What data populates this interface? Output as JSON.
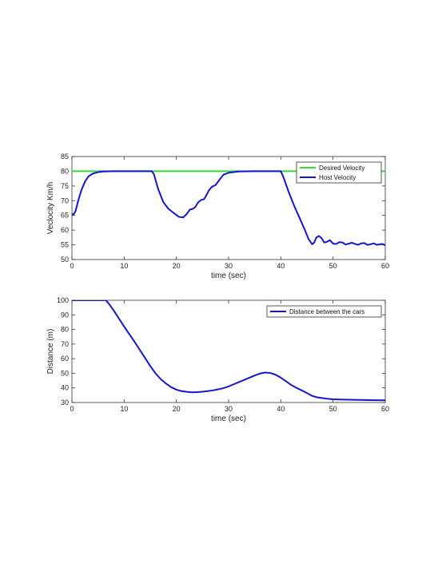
{
  "chart_data": [
    {
      "type": "line",
      "title": "",
      "xlabel": "time (sec)",
      "ylabel": "Veclocity Km/h",
      "xlim": [
        0,
        60
      ],
      "ylim": [
        50,
        85
      ],
      "xticks": [
        0,
        10,
        20,
        30,
        40,
        50,
        60
      ],
      "yticks": [
        50,
        55,
        60,
        65,
        70,
        75,
        80,
        85
      ],
      "grid": false,
      "legend": "top-right",
      "series": [
        {
          "name": "Desired Velocity",
          "color": "#33dd33",
          "x": [
            0,
            60
          ],
          "y": [
            80,
            80
          ]
        },
        {
          "name": "Host Velocity",
          "color": "#1515d0",
          "x": [
            0,
            0.3,
            0.7,
            1.2,
            1.8,
            2.5,
            3.2,
            4,
            5,
            6,
            8,
            10,
            12,
            14,
            15.3,
            15.7,
            16.5,
            17.5,
            18.5,
            19.5,
            20.5,
            21.3,
            22,
            22.6,
            23.1,
            23.6,
            24.2,
            24.8,
            25.3,
            25.8,
            26.3,
            26.8,
            27.5,
            28.2,
            29,
            30,
            32,
            35,
            38,
            40,
            40.5,
            41.5,
            42.5,
            43.5,
            44.5,
            45.3,
            46,
            46.4,
            46.8,
            47.3,
            47.8,
            48.3,
            48.8,
            49.4,
            50,
            50.6,
            51.2,
            51.8,
            52.4,
            53,
            53.6,
            54.2,
            54.8,
            55.4,
            56,
            56.6,
            57.2,
            57.8,
            58.4,
            59,
            59.5,
            60
          ],
          "y": [
            65.5,
            65.3,
            66.5,
            70,
            73.5,
            76.5,
            78.3,
            79.2,
            79.7,
            79.9,
            80,
            80,
            80,
            80,
            80,
            79,
            74,
            69.5,
            67.2,
            65.8,
            64.5,
            64.3,
            65.5,
            67,
            67.2,
            67.8,
            69.5,
            70.3,
            70.5,
            72,
            73.7,
            74.7,
            75.3,
            77,
            78.8,
            79.5,
            79.9,
            80,
            80,
            80,
            78,
            73,
            68.5,
            64.5,
            60.5,
            57,
            55.2,
            55.8,
            57.5,
            58,
            57.3,
            55.8,
            56,
            56.6,
            55.4,
            55.3,
            55.9,
            55.8,
            55.1,
            55.4,
            55.7,
            55.3,
            55,
            55.5,
            55.6,
            55,
            55.2,
            55.5,
            55,
            55.2,
            55.3,
            54.8
          ]
        }
      ]
    },
    {
      "type": "line",
      "title": "",
      "xlabel": "time (sec)",
      "ylabel": "Distance (m)",
      "xlim": [
        0,
        60
      ],
      "ylim": [
        30,
        100
      ],
      "xticks": [
        0,
        10,
        20,
        30,
        40,
        50,
        60
      ],
      "yticks": [
        30,
        40,
        50,
        60,
        70,
        80,
        90,
        100
      ],
      "grid": false,
      "legend": "top-right",
      "series": [
        {
          "name": "Distance between the cars",
          "color": "#1515d0",
          "x": [
            0,
            2,
            4,
            6.5,
            7,
            8,
            10,
            12,
            14,
            15,
            16,
            17,
            18,
            19,
            20,
            21,
            22,
            23,
            24,
            25,
            26,
            27,
            28,
            29,
            30,
            31,
            32,
            33,
            34,
            35,
            36,
            37,
            38,
            39,
            40,
            41,
            42,
            43,
            44,
            45,
            46,
            47,
            48,
            49,
            50,
            52,
            55,
            58,
            60
          ],
          "y": [
            100,
            100,
            100,
            100,
            98,
            93,
            82,
            71.5,
            60.5,
            55,
            50,
            46,
            43,
            40.5,
            38.8,
            37.8,
            37.3,
            37,
            37.1,
            37.4,
            37.8,
            38.3,
            39,
            39.8,
            41,
            42.5,
            44,
            45.5,
            47,
            48.5,
            49.8,
            50.5,
            50.2,
            49,
            47,
            44.5,
            42,
            40,
            38.3,
            36.5,
            34.5,
            33.5,
            33,
            32.5,
            32.2,
            32,
            31.8,
            31.6,
            31.5
          ]
        }
      ]
    }
  ]
}
